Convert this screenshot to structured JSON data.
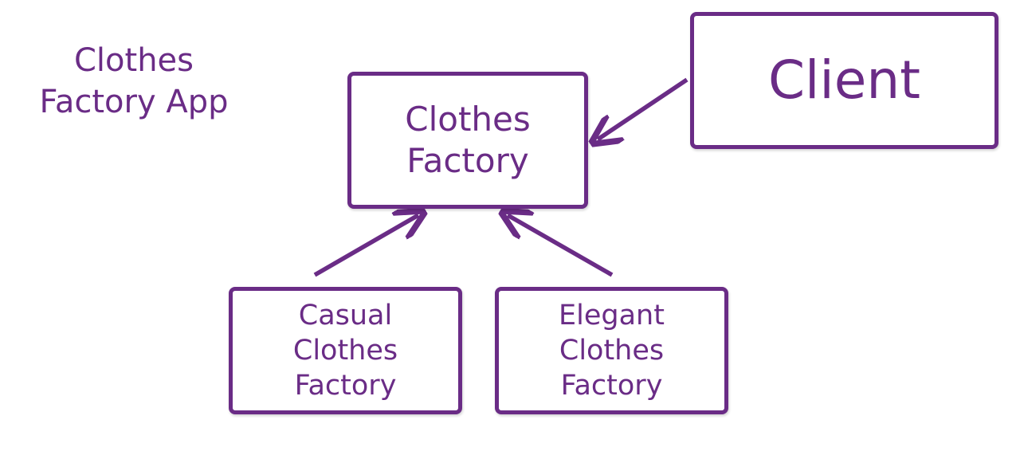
{
  "title": {
    "line1": "Clothes",
    "line2": "Factory App"
  },
  "nodes": {
    "factory": {
      "line1": "Clothes",
      "line2": "Factory"
    },
    "client": {
      "label": "Client"
    },
    "casual": {
      "line1": "Casual",
      "line2": "Clothes",
      "line3": "Factory"
    },
    "elegant": {
      "line1": "Elegant",
      "line2": "Clothes",
      "line3": "Factory"
    }
  },
  "edges": [
    {
      "from": "client",
      "to": "factory"
    },
    {
      "from": "casual",
      "to": "factory"
    },
    {
      "from": "elegant",
      "to": "factory"
    }
  ],
  "colors": {
    "accent": "#6a2c86",
    "background": "#ffffff"
  }
}
